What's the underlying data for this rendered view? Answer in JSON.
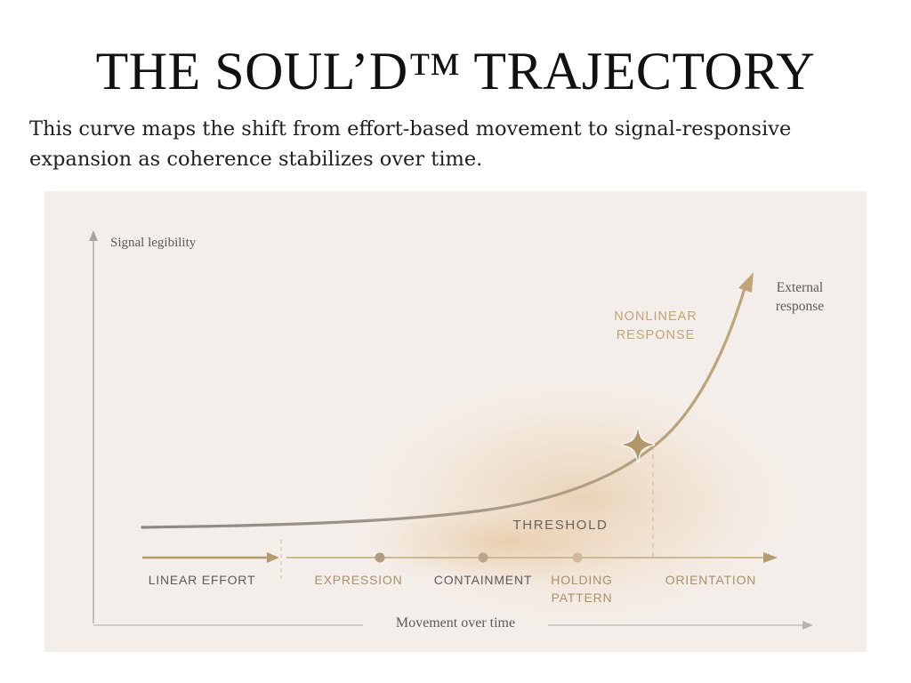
{
  "title": "THE SOUL’D™ TRAJECTORY",
  "subtitle": "This curve maps the shift from effort-based movement to signal-responsive expansion as coherence stabilizes over time.",
  "diagram": {
    "y_axis_label": "Signal legibility",
    "x_axis_label": "Movement over time",
    "curve_end_label": [
      "External",
      "response"
    ],
    "nonlinear_label": [
      "NONLINEAR",
      "RESPONSE"
    ],
    "threshold_label": "THRESHOLD",
    "stages": [
      {
        "label": [
          "LINEAR EFFORT"
        ],
        "tone": "grey"
      },
      {
        "label": [
          "EXPRESSION"
        ],
        "tone": "gold"
      },
      {
        "label": [
          "CONTAINMENT"
        ],
        "tone": "grey"
      },
      {
        "label": [
          "HOLDING",
          "PATTERN"
        ],
        "tone": "gold"
      },
      {
        "label": [
          "ORIENTATION"
        ],
        "tone": "gold"
      }
    ],
    "colors": {
      "panel": "#f4eeea",
      "gold": "#b49b6d",
      "gold_text": "#a8916b",
      "grey_text": "#5b5b5b",
      "curve_start": "#8a8784",
      "curve_end": "#c2a576",
      "axis": "#b3aeaa"
    },
    "icons": [
      "star-icon",
      "arrowhead-icon"
    ]
  }
}
